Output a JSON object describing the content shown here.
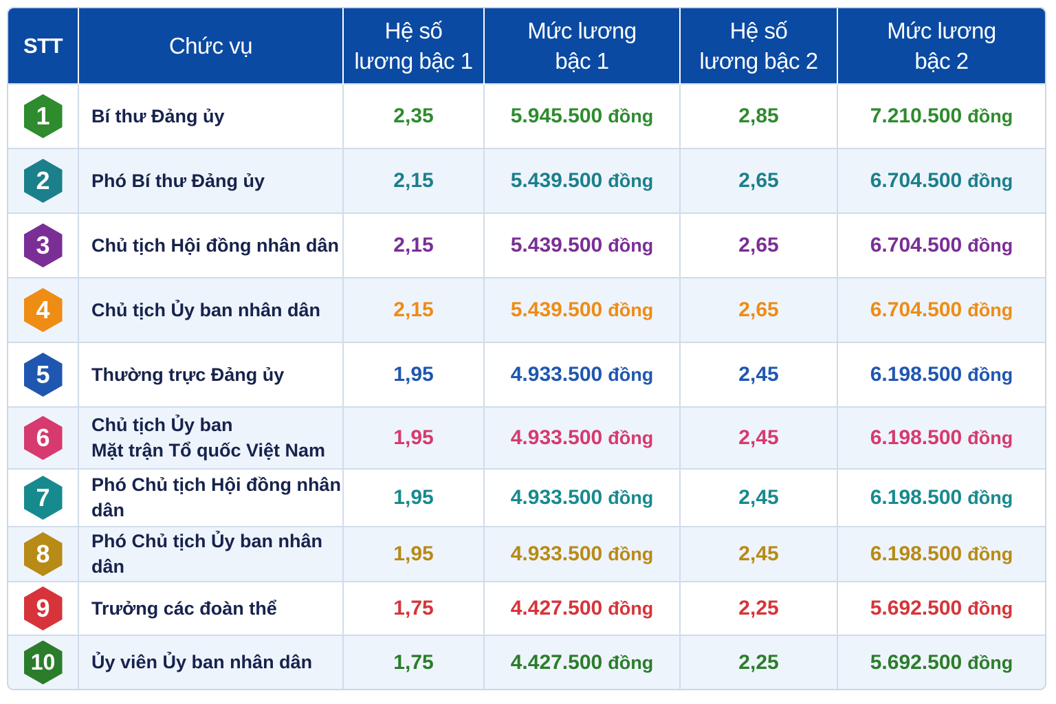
{
  "table": {
    "headers": {
      "stt": "STT",
      "position": "Chức vụ",
      "coef1": [
        "Hệ số",
        "lương bậc 1"
      ],
      "salary1": [
        "Mức lương",
        "bậc 1"
      ],
      "coef2": [
        "Hệ số",
        "lương bậc 2"
      ],
      "salary2": [
        "Mức lương",
        "bậc 2"
      ]
    },
    "currency_unit": "đồng",
    "rows": [
      {
        "stt": "1",
        "position": [
          "Bí thư Đảng ủy"
        ],
        "coef1": "2,35",
        "salary1": "5.945.500",
        "coef2": "2,85",
        "salary2": "7.210.500",
        "color": "#2e8b2e"
      },
      {
        "stt": "2",
        "position": [
          "Phó Bí thư Đảng ủy"
        ],
        "coef1": "2,15",
        "salary1": "5.439.500",
        "coef2": "2,65",
        "salary2": "6.704.500",
        "color": "#1b7f8c"
      },
      {
        "stt": "3",
        "position": [
          "Chủ tịch Hội đồng nhân dân"
        ],
        "coef1": "2,15",
        "salary1": "5.439.500",
        "coef2": "2,65",
        "salary2": "6.704.500",
        "color": "#7a2e96"
      },
      {
        "stt": "4",
        "position": [
          "Chủ tịch Ủy ban nhân dân"
        ],
        "coef1": "2,15",
        "salary1": "5.439.500",
        "coef2": "2,65",
        "salary2": "6.704.500",
        "color": "#ee8c14"
      },
      {
        "stt": "5",
        "position": [
          "Thường trực Đảng ủy"
        ],
        "coef1": "1,95",
        "salary1": "4.933.500",
        "coef2": "2,45",
        "salary2": "6.198.500",
        "color": "#1f57b0"
      },
      {
        "stt": "6",
        "position": [
          "Chủ tịch Ủy ban",
          "Mặt trận Tổ quốc Việt Nam"
        ],
        "coef1": "1,95",
        "salary1": "4.933.500",
        "coef2": "2,45",
        "salary2": "6.198.500",
        "color": "#d63a6e"
      },
      {
        "stt": "7",
        "position": [
          "Phó Chủ tịch Hội đồng nhân dân"
        ],
        "coef1": "1,95",
        "salary1": "4.933.500",
        "coef2": "2,45",
        "salary2": "6.198.500",
        "color": "#178a8e"
      },
      {
        "stt": "8",
        "position": [
          "Phó Chủ tịch Ủy ban nhân dân"
        ],
        "coef1": "1,95",
        "salary1": "4.933.500",
        "coef2": "2,45",
        "salary2": "6.198.500",
        "color": "#b88a16"
      },
      {
        "stt": "9",
        "position": [
          "Trưởng các đoàn thể"
        ],
        "coef1": "1,75",
        "salary1": "4.427.500",
        "coef2": "2,25",
        "salary2": "5.692.500",
        "color": "#d6343a"
      },
      {
        "stt": "10",
        "position": [
          "Ủy viên Ủy ban nhân dân"
        ],
        "coef1": "1,75",
        "salary1": "4.427.500",
        "coef2": "2,25",
        "salary2": "5.692.500",
        "color": "#2b7d2b"
      }
    ]
  }
}
